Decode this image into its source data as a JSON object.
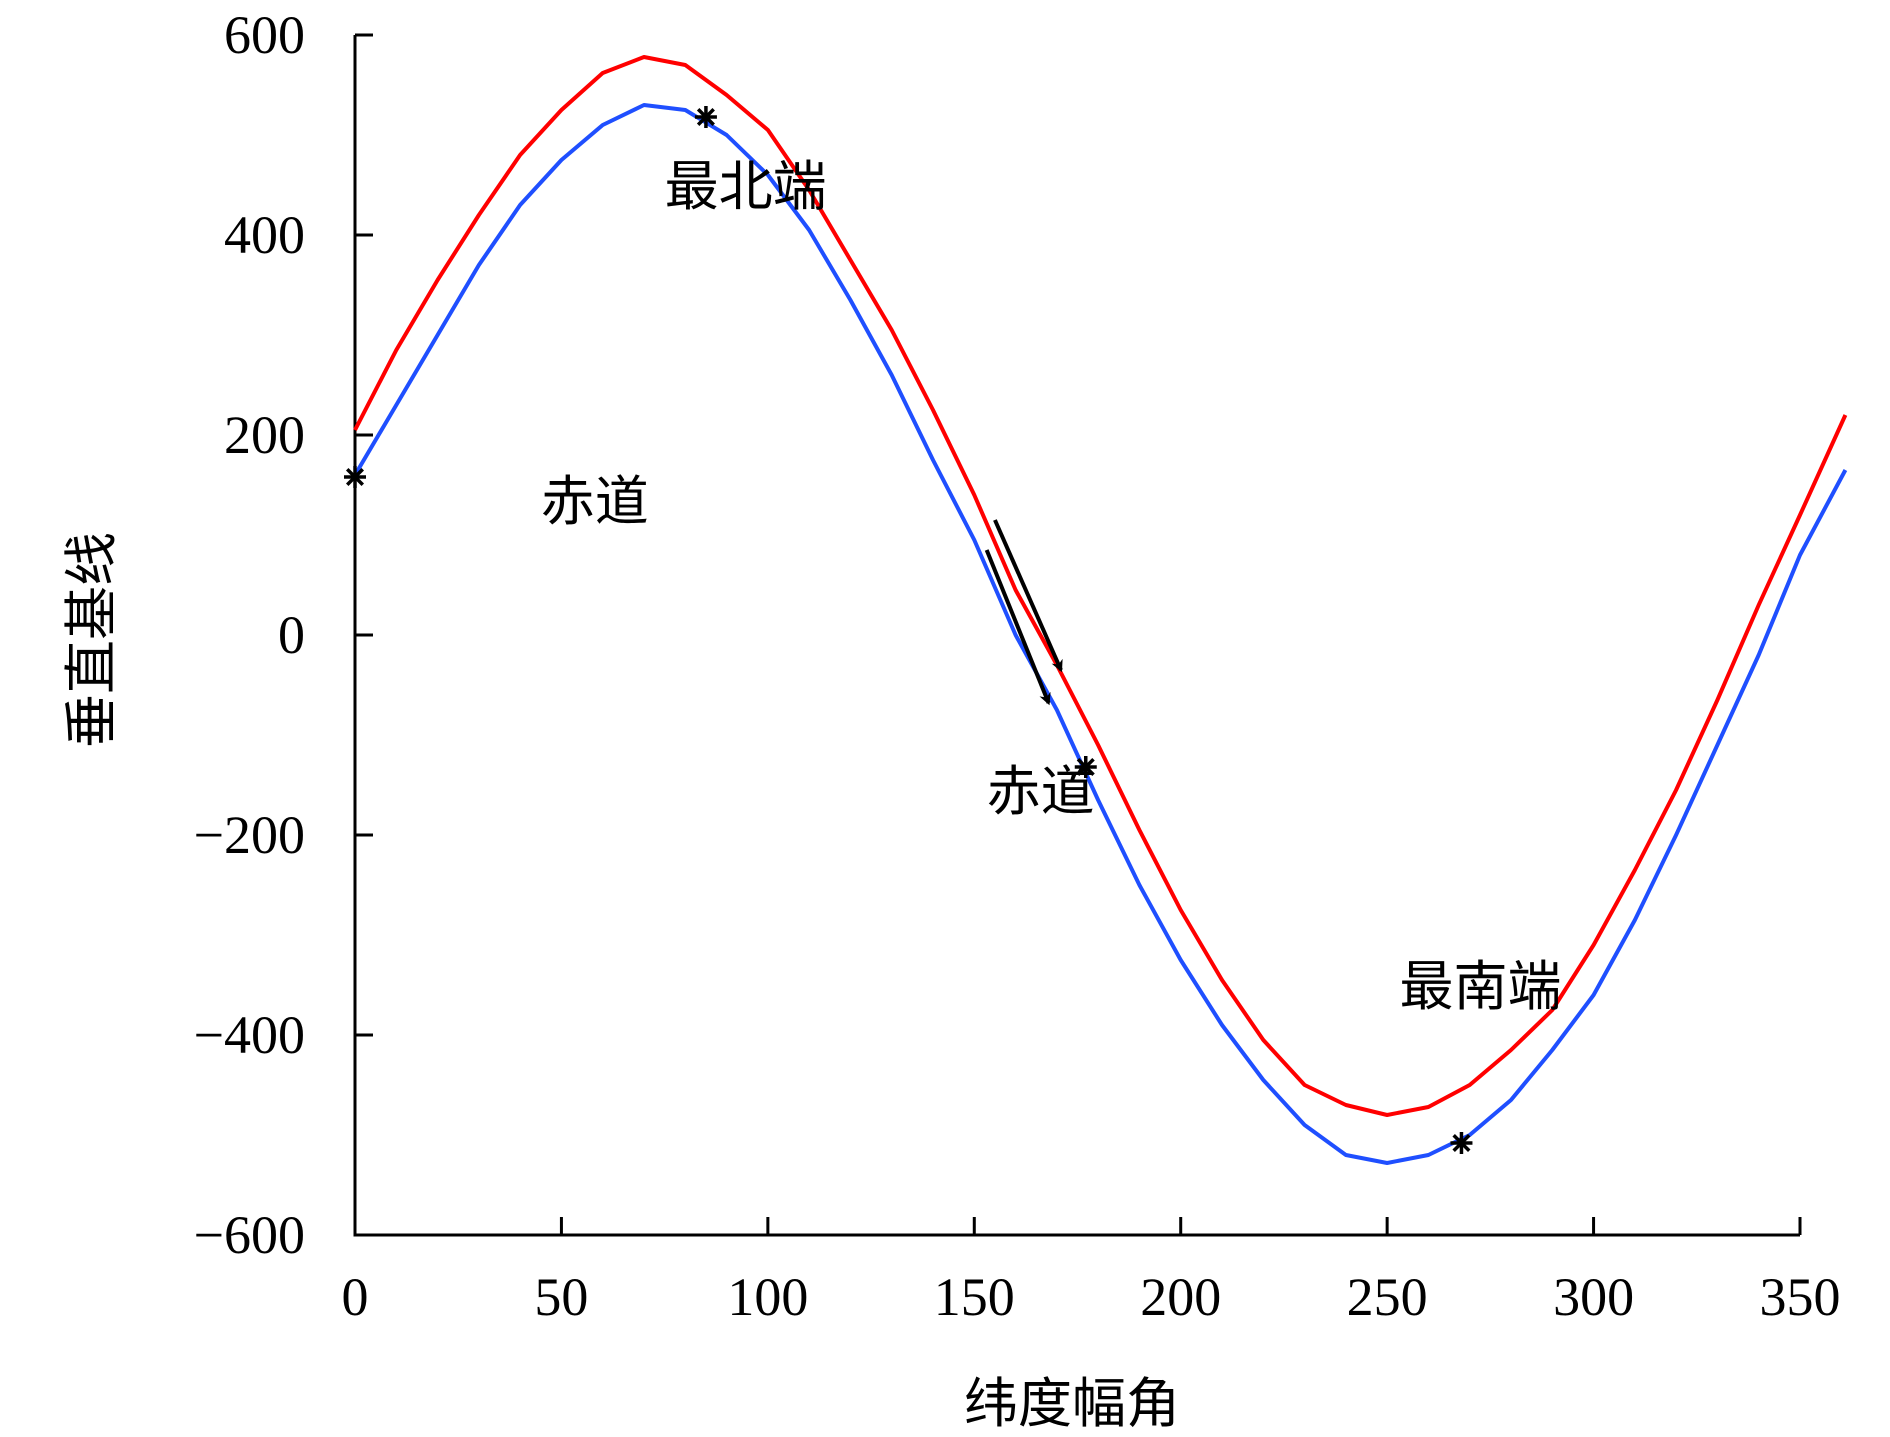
{
  "chart_data": {
    "type": "line",
    "title": "",
    "xlabel": "纬度幅角",
    "ylabel": "垂直基线",
    "xlim": [
      0,
      350
    ],
    "ylim": [
      -600,
      600
    ],
    "x_ticks": [
      0,
      50,
      100,
      150,
      200,
      250,
      300,
      350
    ],
    "y_ticks": [
      600,
      400,
      200,
      0,
      -200,
      -400,
      -600
    ],
    "y_tick_labels": [
      "600",
      "400",
      "200",
      "0",
      "−200",
      "−400",
      "−600"
    ],
    "grid": false,
    "legend": "none",
    "series": [
      {
        "color": "#ff0000",
        "x": [
          0,
          10,
          20,
          30,
          40,
          50,
          60,
          70,
          80,
          90,
          100,
          110,
          120,
          130,
          140,
          150,
          160,
          170,
          180,
          190,
          200,
          210,
          220,
          230,
          240,
          250,
          260,
          270,
          280,
          290,
          300,
          310,
          320,
          330,
          340,
          350,
          361
        ],
        "y": [
          205,
          285,
          355,
          420,
          480,
          525,
          562,
          578,
          570,
          540,
          505,
          445,
          375,
          305,
          225,
          140,
          45,
          -30,
          -110,
          -195,
          -275,
          -345,
          -405,
          -450,
          -470,
          -480,
          -472,
          -450,
          -415,
          -375,
          -310,
          -235,
          -155,
          -65,
          30,
          120,
          220
        ]
      },
      {
        "color": "#1f4fff",
        "x": [
          0,
          10,
          20,
          30,
          40,
          50,
          60,
          70,
          80,
          90,
          100,
          110,
          120,
          130,
          140,
          150,
          160,
          170,
          180,
          190,
          200,
          210,
          220,
          230,
          240,
          250,
          260,
          270,
          280,
          290,
          300,
          310,
          320,
          330,
          340,
          350,
          361
        ],
        "y": [
          160,
          230,
          300,
          370,
          430,
          475,
          510,
          530,
          525,
          500,
          460,
          405,
          335,
          260,
          175,
          95,
          0,
          -75,
          -165,
          -250,
          -325,
          -390,
          -445,
          -490,
          -520,
          -528,
          -520,
          -500,
          -465,
          -415,
          -360,
          -285,
          -200,
          -110,
          -20,
          80,
          165
        ]
      }
    ],
    "markers": [
      {
        "x": 0,
        "y": 158
      },
      {
        "x": 85,
        "y": 518
      },
      {
        "x": 177,
        "y": -132
      },
      {
        "x": 268,
        "y": -508
      }
    ],
    "annotations": [
      {
        "text": "最北端",
        "x": 75,
        "y": 430
      },
      {
        "text": "赤道",
        "x": 45,
        "y": 115
      },
      {
        "text": "赤道",
        "x": 153,
        "y": -175
      },
      {
        "text": "最南端",
        "x": 253,
        "y": -370
      }
    ],
    "arrows": [
      {
        "from": [
          155,
          115
        ],
        "to": [
          171,
          -35
        ]
      },
      {
        "from": [
          153,
          85
        ],
        "to": [
          168,
          -68
        ]
      }
    ]
  }
}
